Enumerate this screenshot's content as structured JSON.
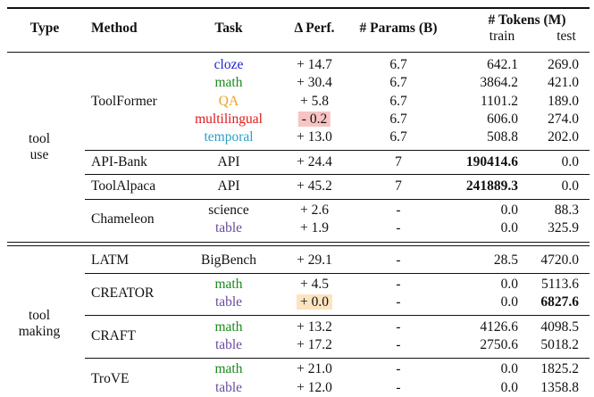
{
  "header": {
    "type": "Type",
    "method": "Method",
    "task": "Task",
    "perf": "Δ Perf.",
    "params": "# Params (B)",
    "tokens": "# Tokens (M)",
    "train": "train",
    "test": "test"
  },
  "groups": [
    {
      "type": [
        "tool",
        "use"
      ],
      "methods": [
        {
          "name": "ToolFormer",
          "rows": [
            {
              "task": "cloze",
              "color": "#1f1fd6",
              "perf": "+ 14.7",
              "params": "6.7",
              "train": "642.1",
              "test": "269.0"
            },
            {
              "task": "math",
              "color": "#1a8a1a",
              "perf": "+ 30.4",
              "params": "6.7",
              "train": "3864.2",
              "test": "421.0"
            },
            {
              "task": "QA",
              "color": "#f0a020",
              "perf": "+ 5.8",
              "params": "6.7",
              "train": "1101.2",
              "test": "189.0"
            },
            {
              "task": "multilingual",
              "color": "#e01818",
              "perf": "- 0.2",
              "perf_highlight": "#f7c4c4",
              "params": "6.7",
              "train": "606.0",
              "test": "274.0"
            },
            {
              "task": "temporal",
              "color": "#2aa0c8",
              "perf": "+ 13.0",
              "params": "6.7",
              "train": "508.8",
              "test": "202.0"
            }
          ]
        },
        {
          "name": "API-Bank",
          "rows": [
            {
              "task": "API",
              "color": "#111111",
              "perf": "+ 24.4",
              "params": "7",
              "train": "190414.6",
              "test": "0.0",
              "bold": "train"
            }
          ]
        },
        {
          "name": "ToolAlpaca",
          "rows": [
            {
              "task": "API",
              "color": "#111111",
              "perf": "+ 45.2",
              "params": "7",
              "train": "241889.3",
              "test": "0.0",
              "bold": "train"
            }
          ]
        },
        {
          "name": "Chameleon",
          "rows": [
            {
              "task": "science",
              "color": "#111111",
              "perf": "+ 2.6",
              "params": "-",
              "train": "0.0",
              "test": "88.3"
            },
            {
              "task": "table",
              "color": "#6a4c9c",
              "perf": "+ 1.9",
              "params": "-",
              "train": "0.0",
              "test": "325.9"
            }
          ]
        }
      ]
    },
    {
      "type": [
        "tool",
        "making"
      ],
      "methods": [
        {
          "name": "LATM",
          "rows": [
            {
              "task": "BigBench",
              "color": "#111111",
              "perf": "+ 29.1",
              "params": "-",
              "train": "28.5",
              "test": "4720.0"
            }
          ]
        },
        {
          "name": "CREATOR",
          "rows": [
            {
              "task": "math",
              "color": "#1a8a1a",
              "perf": "+ 4.5",
              "params": "-",
              "train": "0.0",
              "test": "5113.6"
            },
            {
              "task": "table",
              "color": "#6a4c9c",
              "perf": "+ 0.0",
              "perf_highlight": "#fde3c0",
              "params": "-",
              "train": "0.0",
              "test": "6827.6",
              "bold": "test"
            }
          ]
        },
        {
          "name": "CRAFT",
          "rows": [
            {
              "task": "math",
              "color": "#1a8a1a",
              "perf": "+ 13.2",
              "params": "-",
              "train": "4126.6",
              "test": "4098.5"
            },
            {
              "task": "table",
              "color": "#6a4c9c",
              "perf": "+ 17.2",
              "params": "-",
              "train": "2750.6",
              "test": "5018.2"
            }
          ]
        },
        {
          "name": "TroVE",
          "rows": [
            {
              "task": "math",
              "color": "#1a8a1a",
              "perf": "+ 21.0",
              "params": "-",
              "train": "0.0",
              "test": "1825.2"
            },
            {
              "task": "table",
              "color": "#6a4c9c",
              "perf": "+ 12.0",
              "params": "-",
              "train": "0.0",
              "test": "1358.8"
            }
          ]
        }
      ]
    }
  ]
}
